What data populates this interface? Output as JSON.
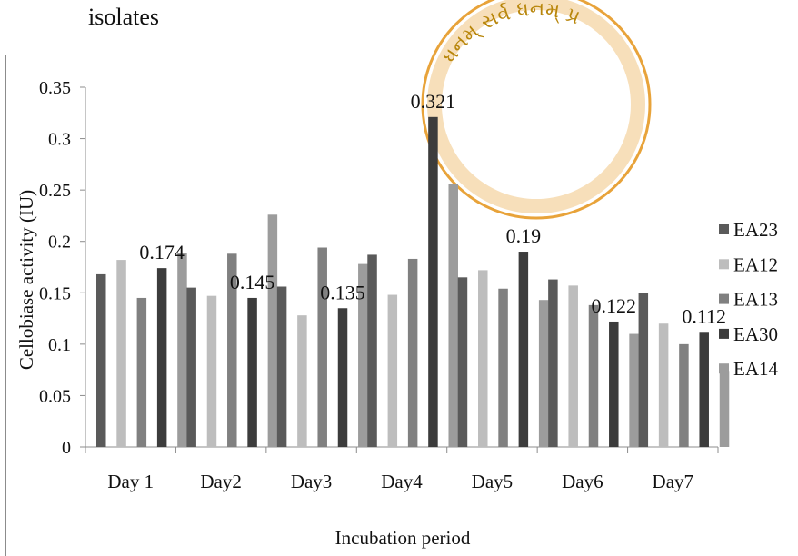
{
  "header_text": "isolates",
  "seal": {
    "inscription": "ધનમ્ સર્વ ધનમ્ પ્ર",
    "color": "#E8A33A",
    "ink_color": "#B8860B"
  },
  "chart_data": {
    "type": "bar",
    "title": "",
    "xlabel": "Incubation period",
    "ylabel": "Cellobiase activity (IU)",
    "categories": [
      "Day 1",
      "Day2",
      "Day3",
      "Day4",
      "Day5",
      "Day6",
      "Day7"
    ],
    "ylim": [
      0,
      0.35
    ],
    "yticks": [
      0,
      0.05,
      0.1,
      0.15,
      0.2,
      0.25,
      0.3,
      0.35
    ],
    "ytick_labels": [
      "0",
      "0.05",
      "0.1",
      "0.15",
      "0.2",
      "0.25",
      "0.3",
      "0.35"
    ],
    "grid": false,
    "legend_position": "right",
    "series": [
      {
        "name": "EA23",
        "color": "#5a5a5a",
        "values": [
          0.168,
          0.155,
          0.156,
          0.187,
          0.165,
          0.163,
          0.15
        ]
      },
      {
        "name": "EA12",
        "color": "#bdbdbd",
        "values": [
          0.182,
          0.147,
          0.128,
          0.148,
          0.172,
          0.157,
          0.12
        ]
      },
      {
        "name": "EA13",
        "color": "#808080",
        "values": [
          0.145,
          0.188,
          0.194,
          0.183,
          0.154,
          0.138,
          0.1
        ]
      },
      {
        "name": "EA30",
        "color": "#3c3c3c",
        "values": [
          0.174,
          0.145,
          0.135,
          0.321,
          0.19,
          0.122,
          0.112
        ]
      },
      {
        "name": "EA14",
        "color": "#9c9c9c",
        "values": [
          0.189,
          0.226,
          0.178,
          0.256,
          0.143,
          0.11,
          0.074
        ]
      }
    ],
    "data_labels": [
      {
        "series": "EA30",
        "category": "Day 1",
        "text": "0.174"
      },
      {
        "series": "EA30",
        "category": "Day2",
        "text": "0.145"
      },
      {
        "series": "EA30",
        "category": "Day3",
        "text": "0.135"
      },
      {
        "series": "EA30",
        "category": "Day4",
        "text": "0.321"
      },
      {
        "series": "EA30",
        "category": "Day5",
        "text": "0.19"
      },
      {
        "series": "EA30",
        "category": "Day6",
        "text": "0.122"
      },
      {
        "series": "EA30",
        "category": "Day7",
        "text": "0.112"
      }
    ]
  }
}
